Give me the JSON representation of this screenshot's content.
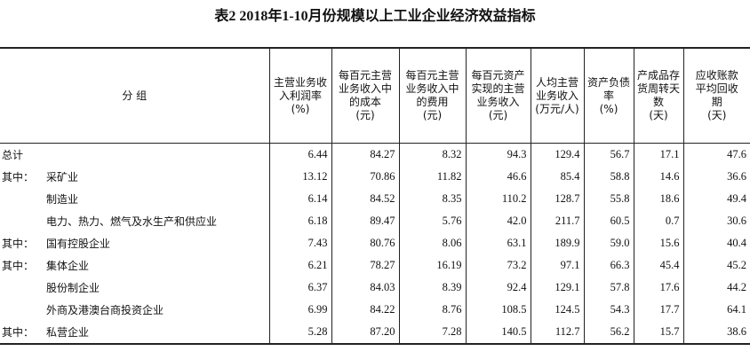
{
  "title": "表2  2018年1-10月份规模以上工业企业经济效益指标",
  "table": {
    "group_header": "分    组",
    "headers": [
      [
        "主营业务收",
        "入利润率",
        "(%)"
      ],
      [
        "每百元主营",
        "业务收入中",
        "的成本",
        "(元)"
      ],
      [
        "每百元主营",
        "业务收入中",
        "的费用",
        "(元)"
      ],
      [
        "每百元资产",
        "实现的主营",
        "业务收入",
        "(元)"
      ],
      [
        "人均主营",
        "业务收入",
        "(万元/人)"
      ],
      [
        "资产负债",
        "率",
        "(%)"
      ],
      [
        "产成品存",
        "货周转天",
        "数",
        "(天)"
      ],
      [
        "应收账款",
        "平均回收",
        "期",
        "(天)"
      ]
    ],
    "rows": [
      {
        "group": "总计",
        "values": [
          "6.44",
          "84.27",
          "8.32",
          "94.3",
          "129.4",
          "56.7",
          "17.1",
          "47.6"
        ]
      },
      {
        "group": "其中：",
        "name": "采矿业",
        "values": [
          "13.12",
          "70.86",
          "11.82",
          "46.6",
          "85.4",
          "58.8",
          "14.6",
          "36.6"
        ]
      },
      {
        "name": "制造业",
        "values": [
          "6.14",
          "84.52",
          "8.35",
          "110.2",
          "128.7",
          "55.8",
          "18.6",
          "49.4"
        ]
      },
      {
        "name": "电力、热力、燃气及水生产和供应业",
        "values": [
          "6.18",
          "89.47",
          "5.76",
          "42.0",
          "211.7",
          "60.5",
          "0.7",
          "30.6"
        ]
      },
      {
        "group": "其中：",
        "name": "国有控股企业",
        "values": [
          "7.43",
          "80.76",
          "8.06",
          "63.1",
          "189.9",
          "59.0",
          "15.6",
          "40.4"
        ]
      },
      {
        "group": "其中：",
        "name": "集体企业",
        "values": [
          "6.21",
          "78.27",
          "16.19",
          "73.2",
          "97.1",
          "66.3",
          "45.4",
          "45.2"
        ]
      },
      {
        "name": "股份制企业",
        "values": [
          "6.37",
          "84.03",
          "8.39",
          "92.4",
          "129.1",
          "57.8",
          "17.6",
          "44.2"
        ]
      },
      {
        "name": "外商及港澳台商投资企业",
        "values": [
          "6.99",
          "84.22",
          "8.76",
          "108.5",
          "124.5",
          "54.3",
          "17.7",
          "64.1"
        ]
      },
      {
        "group": "其中：",
        "name": "私营企业",
        "values": [
          "5.28",
          "87.20",
          "7.28",
          "140.5",
          "112.7",
          "56.2",
          "15.7",
          "38.6"
        ]
      }
    ]
  }
}
